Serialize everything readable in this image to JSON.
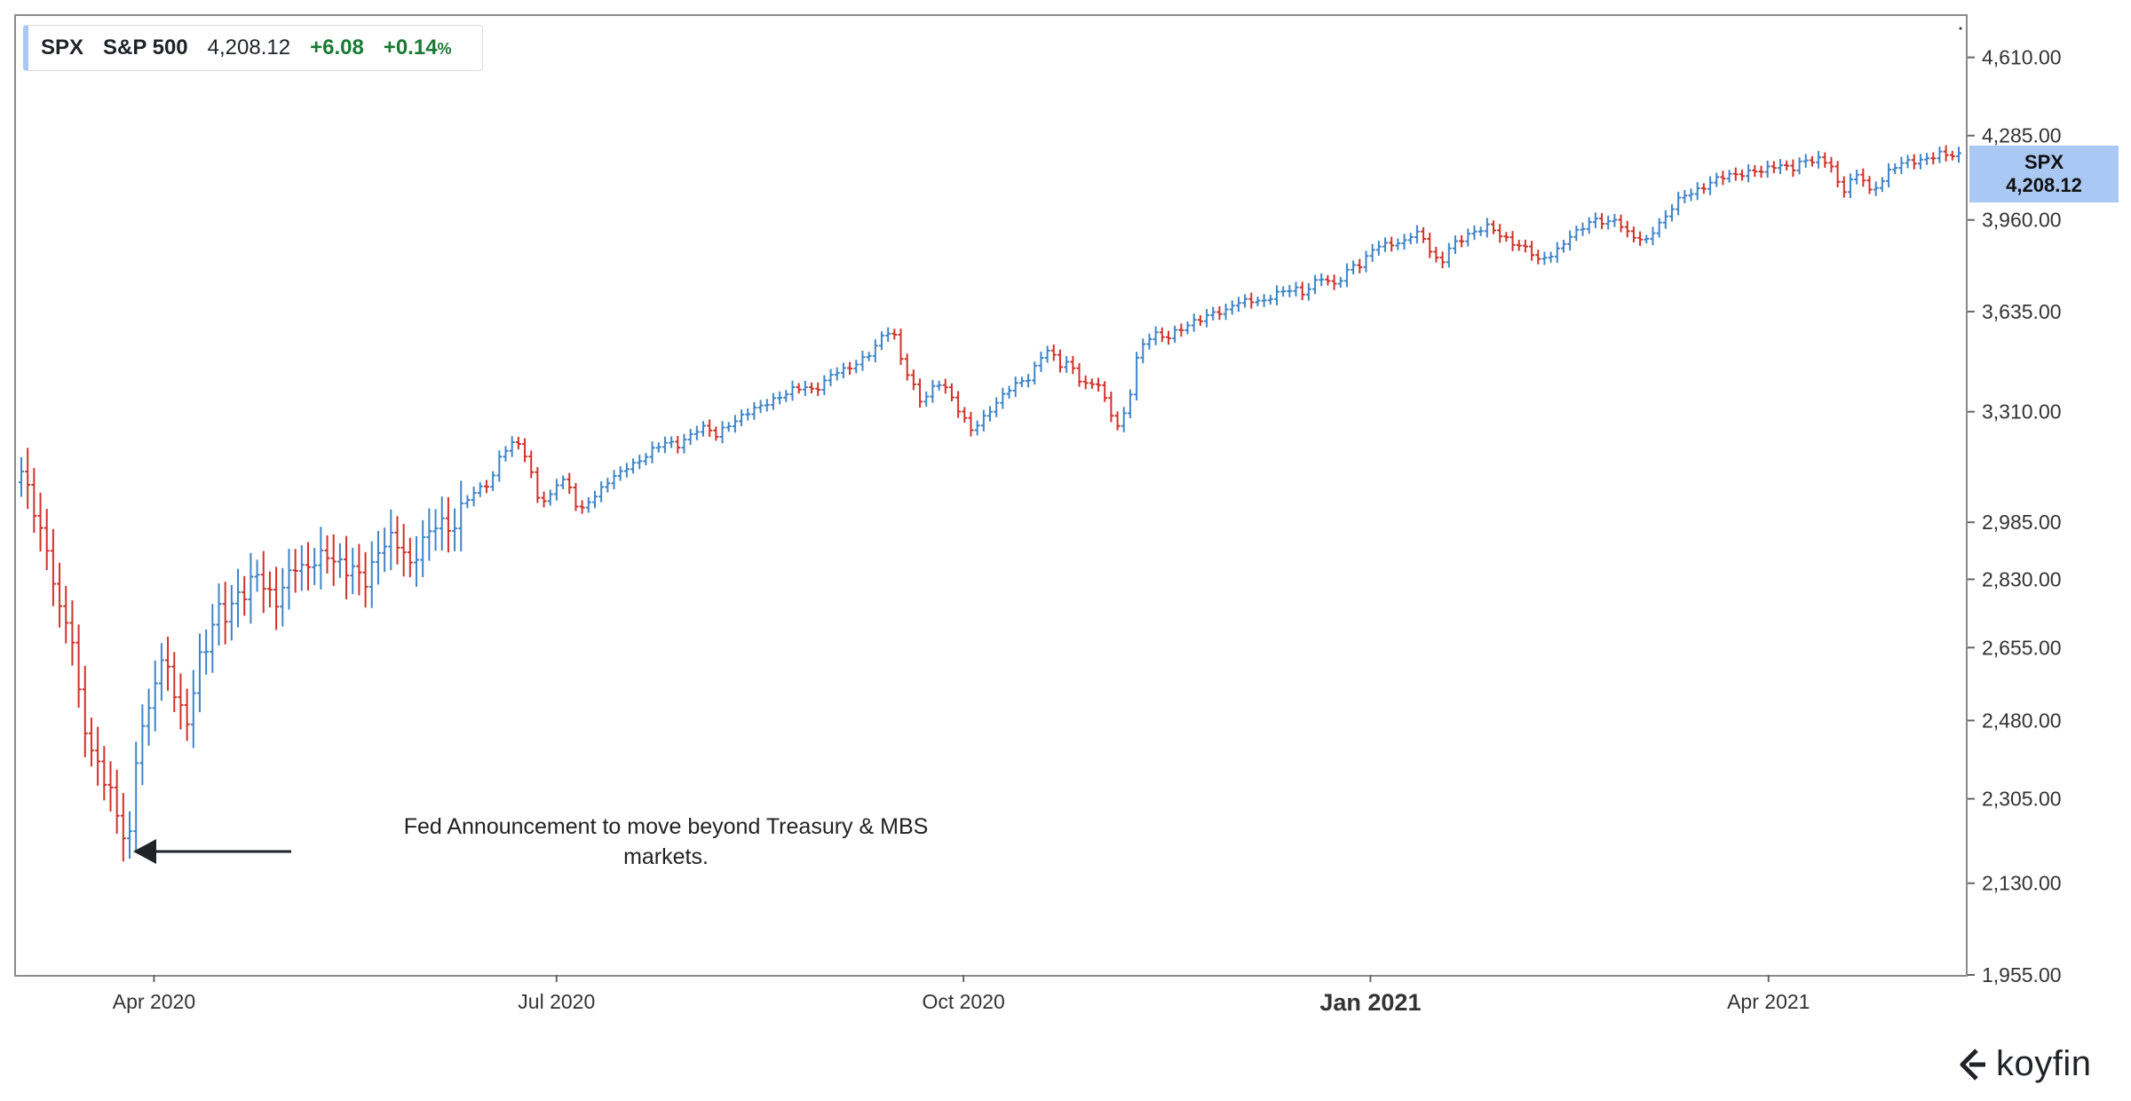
{
  "legend": {
    "symbol": "SPX",
    "name": "S&P 500",
    "price": "4,208.12",
    "change": "+6.08",
    "pct": "+0.14",
    "pct_unit": "%"
  },
  "price_tag": {
    "symbol": "SPX",
    "value": "4,208.12"
  },
  "annotation": {
    "line1": "Fed Announcement to move beyond Treasury & MBS",
    "line2": "markets."
  },
  "logo": {
    "text": "koyfin",
    "icon": "koyfin-logo-icon"
  },
  "colors": {
    "up": "#3f85c7",
    "down": "#d0322a",
    "tag": "#a9c8f3",
    "positive_text": "#1a7a32"
  },
  "chart_data": {
    "type": "ohlc",
    "title": "",
    "scale": "log",
    "ylim": [
      1955,
      4800
    ],
    "y_ticks": [
      1955,
      2130,
      2305,
      2480,
      2655,
      2830,
      2985,
      3310,
      3635,
      3960,
      4285,
      4610
    ],
    "y_tick_labels": [
      "1,955.00",
      "2,130.00",
      "2,305.00",
      "2,480.00",
      "2,655.00",
      "2,830.00",
      "2,985.00",
      "3,310.00",
      "3,635.00",
      "3,960.00",
      "4,285.00",
      "4,610.00"
    ],
    "x_range": [
      "2020-03-02",
      "2021-05-14"
    ],
    "x_ticks": [
      {
        "date": "2020-04-01",
        "label": "Apr 2020",
        "bold": false
      },
      {
        "date": "2020-07-01",
        "label": "Jul 2020",
        "bold": false
      },
      {
        "date": "2020-10-01",
        "label": "Oct 2020",
        "bold": false
      },
      {
        "date": "2021-01-01",
        "label": "Jan 2021",
        "bold": true
      },
      {
        "date": "2021-04-01",
        "label": "Apr 2021",
        "bold": false
      }
    ],
    "closes": [
      3130,
      3035,
      2950,
      2880,
      2740,
      2710,
      2500,
      2420,
      2380,
      2330,
      2240,
      2200,
      2470,
      2500,
      2620,
      2590,
      2520,
      2480,
      2620,
      2650,
      2750,
      2740,
      2800,
      2790,
      2840,
      2800,
      2780,
      2830,
      2860,
      2840,
      2890,
      2910,
      2880,
      2840,
      2860,
      2830,
      2880,
      2920,
      2930,
      2910,
      2860,
      2940,
      2960,
      2990,
      2950,
      3040,
      3060,
      3080,
      3100,
      3190,
      3210,
      3210,
      3130,
      3040,
      3060,
      3110,
      3080,
      3010,
      3050,
      3070,
      3100,
      3120,
      3150,
      3160,
      3180,
      3200,
      3220,
      3210,
      3230,
      3250,
      3260,
      3240,
      3270,
      3280,
      3300,
      3320,
      3340,
      3350,
      3360,
      3380,
      3390,
      3380,
      3400,
      3430,
      3440,
      3460,
      3480,
      3500,
      3550,
      3580,
      3470,
      3400,
      3330,
      3380,
      3410,
      3360,
      3300,
      3250,
      3280,
      3320,
      3350,
      3380,
      3400,
      3420,
      3480,
      3510,
      3450,
      3470,
      3420,
      3390,
      3400,
      3320,
      3270,
      3320,
      3480,
      3540,
      3560,
      3550,
      3570,
      3580,
      3600,
      3620,
      3640,
      3630,
      3660,
      3670,
      3680,
      3670,
      3690,
      3700,
      3720,
      3700,
      3730,
      3750,
      3720,
      3760,
      3800,
      3790,
      3850,
      3870,
      3880,
      3870,
      3900,
      3910,
      3850,
      3800,
      3860,
      3880,
      3910,
      3930,
      3940,
      3900,
      3880,
      3870,
      3860,
      3810,
      3820,
      3850,
      3900,
      3920,
      3940,
      3960,
      3950,
      3970,
      3910,
      3890,
      3880,
      3940,
      3970,
      4020,
      4050,
      4070,
      4090,
      4110,
      4120,
      4130,
      4140,
      4150,
      4140,
      4160,
      4170,
      4160,
      4185,
      4180,
      4190,
      4170,
      4060,
      4110,
      4130,
      4060,
      4110,
      4150,
      4170,
      4180,
      4190,
      4200,
      4210,
      4202,
      4208
    ]
  }
}
